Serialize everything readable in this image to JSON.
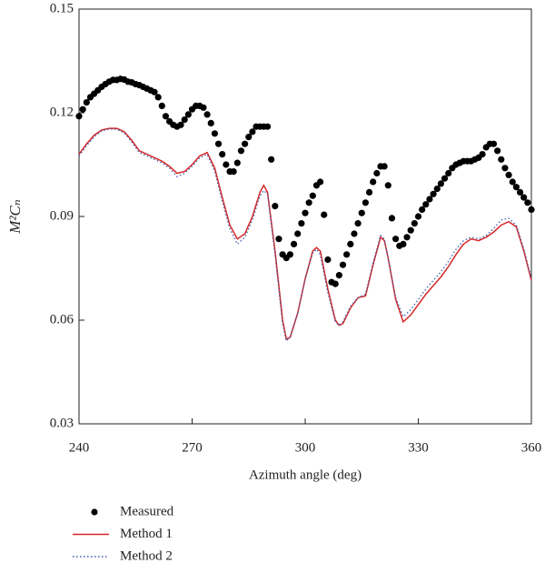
{
  "chart_data": {
    "type": "line",
    "xlabel": "Azimuth angle (deg)",
    "ylabel": "M²Cₙ",
    "xlim": [
      240,
      360
    ],
    "xticks": [
      240,
      270,
      300,
      330,
      360
    ],
    "ylim": [
      0.03,
      0.15
    ],
    "yticks": [
      0.03,
      0.06,
      0.09,
      0.12,
      0.15
    ],
    "legend": "bottom-left",
    "series": [
      {
        "name": "Measured",
        "color": "#000000",
        "style": "markers",
        "x": [
          240,
          241,
          242,
          243,
          244,
          245,
          246,
          247,
          248,
          249,
          250,
          251,
          252,
          253,
          254,
          255,
          256,
          257,
          258,
          259,
          260,
          261,
          262,
          263,
          264,
          265,
          266,
          267,
          268,
          269,
          270,
          271,
          272,
          273,
          274,
          275,
          276,
          277,
          278,
          279,
          280,
          281,
          282,
          283,
          284,
          285,
          286,
          287,
          288,
          289,
          290,
          291,
          292,
          293,
          294,
          295,
          296,
          297,
          298,
          299,
          300,
          301,
          302,
          303,
          304,
          305,
          306,
          307,
          308,
          309,
          310,
          311,
          312,
          313,
          314,
          315,
          316,
          317,
          318,
          319,
          320,
          321,
          322,
          323,
          324,
          325,
          326,
          327,
          328,
          329,
          330,
          331,
          332,
          333,
          334,
          335,
          336,
          337,
          338,
          339,
          340,
          341,
          342,
          343,
          344,
          345,
          346,
          347,
          348,
          349,
          350,
          351,
          352,
          353,
          354,
          355,
          356,
          357,
          358,
          359,
          360
        ],
        "values": [
          0.119,
          0.121,
          0.123,
          0.1245,
          0.1255,
          0.1265,
          0.1275,
          0.1283,
          0.129,
          0.1295,
          0.1295,
          0.1298,
          0.1296,
          0.129,
          0.1288,
          0.1283,
          0.128,
          0.1275,
          0.127,
          0.1265,
          0.126,
          0.1245,
          0.122,
          0.119,
          0.1175,
          0.1165,
          0.116,
          0.1165,
          0.118,
          0.1195,
          0.121,
          0.122,
          0.122,
          0.1215,
          0.1195,
          0.117,
          0.114,
          0.111,
          0.108,
          0.105,
          0.103,
          0.103,
          0.1055,
          0.109,
          0.111,
          0.113,
          0.1145,
          0.116,
          0.116,
          0.116,
          0.116,
          0.1065,
          0.093,
          0.0835,
          0.079,
          0.078,
          0.079,
          0.082,
          0.085,
          0.088,
          0.091,
          0.094,
          0.096,
          0.099,
          0.1,
          0.0905,
          0.0775,
          0.071,
          0.0705,
          0.073,
          0.076,
          0.079,
          0.082,
          0.085,
          0.088,
          0.091,
          0.094,
          0.097,
          0.1,
          0.1025,
          0.1045,
          0.1045,
          0.099,
          0.0895,
          0.0835,
          0.0815,
          0.082,
          0.084,
          0.086,
          0.088,
          0.09,
          0.092,
          0.0935,
          0.095,
          0.0965,
          0.098,
          0.0995,
          0.101,
          0.1025,
          0.104,
          0.105,
          0.1055,
          0.106,
          0.106,
          0.106,
          0.1065,
          0.107,
          0.108,
          0.11,
          0.111,
          0.111,
          0.109,
          0.1065,
          0.104,
          0.102,
          0.1,
          0.0985,
          0.097,
          0.0955,
          0.094,
          0.092
        ]
      },
      {
        "name": "Method 1",
        "color": "#d62728",
        "style": "solid",
        "x": [
          240,
          242,
          244,
          246,
          248,
          250,
          252,
          254,
          256,
          258,
          260,
          262,
          264,
          266,
          268,
          270,
          272,
          274,
          276,
          278,
          280,
          282,
          284,
          286,
          288,
          289,
          290,
          292,
          294,
          295,
          296,
          298,
          300,
          302,
          303,
          304,
          306,
          308,
          309,
          310,
          312,
          314,
          316,
          318,
          320,
          321,
          322,
          324,
          326,
          328,
          330,
          332,
          334,
          336,
          338,
          340,
          342,
          344,
          346,
          348,
          350,
          352,
          354,
          356,
          358,
          360
        ],
        "values": [
          0.108,
          0.111,
          0.1135,
          0.115,
          0.1155,
          0.1155,
          0.1145,
          0.112,
          0.109,
          0.108,
          0.107,
          0.106,
          0.1045,
          0.1025,
          0.103,
          0.105,
          0.1075,
          0.1085,
          0.104,
          0.0955,
          0.0875,
          0.0835,
          0.085,
          0.09,
          0.097,
          0.099,
          0.097,
          0.08,
          0.06,
          0.0545,
          0.055,
          0.062,
          0.072,
          0.08,
          0.081,
          0.08,
          0.069,
          0.06,
          0.0585,
          0.059,
          0.0635,
          0.0665,
          0.067,
          0.076,
          0.084,
          0.083,
          0.078,
          0.066,
          0.0595,
          0.0615,
          0.0645,
          0.0675,
          0.07,
          0.0725,
          0.0755,
          0.079,
          0.082,
          0.0835,
          0.083,
          0.084,
          0.0855,
          0.0875,
          0.0885,
          0.087,
          0.08,
          0.0715
        ]
      },
      {
        "name": "Method 2",
        "color": "#3b5bab",
        "style": "dotted",
        "x": [
          240,
          242,
          244,
          246,
          248,
          250,
          252,
          254,
          256,
          258,
          260,
          262,
          264,
          266,
          268,
          270,
          272,
          274,
          276,
          278,
          280,
          282,
          284,
          286,
          288,
          289,
          290,
          292,
          294,
          295,
          296,
          298,
          300,
          302,
          303,
          304,
          306,
          308,
          309,
          310,
          312,
          314,
          316,
          318,
          320,
          321,
          322,
          324,
          326,
          328,
          330,
          332,
          334,
          336,
          338,
          340,
          342,
          344,
          346,
          348,
          350,
          352,
          354,
          356,
          358,
          360
        ],
        "values": [
          0.1075,
          0.1105,
          0.113,
          0.1148,
          0.1153,
          0.1152,
          0.1142,
          0.1115,
          0.1085,
          0.1075,
          0.1065,
          0.1055,
          0.104,
          0.1015,
          0.1025,
          0.1045,
          0.107,
          0.108,
          0.103,
          0.0945,
          0.0865,
          0.082,
          0.084,
          0.089,
          0.096,
          0.0975,
          0.0965,
          0.079,
          0.059,
          0.054,
          0.055,
          0.062,
          0.072,
          0.0795,
          0.0805,
          0.079,
          0.068,
          0.0595,
          0.0585,
          0.0595,
          0.064,
          0.0665,
          0.0675,
          0.0765,
          0.0845,
          0.0835,
          0.078,
          0.0665,
          0.061,
          0.063,
          0.066,
          0.069,
          0.0715,
          0.074,
          0.077,
          0.0805,
          0.083,
          0.084,
          0.0835,
          0.0845,
          0.0865,
          0.089,
          0.0895,
          0.0875,
          0.0805,
          0.072
        ]
      }
    ]
  }
}
